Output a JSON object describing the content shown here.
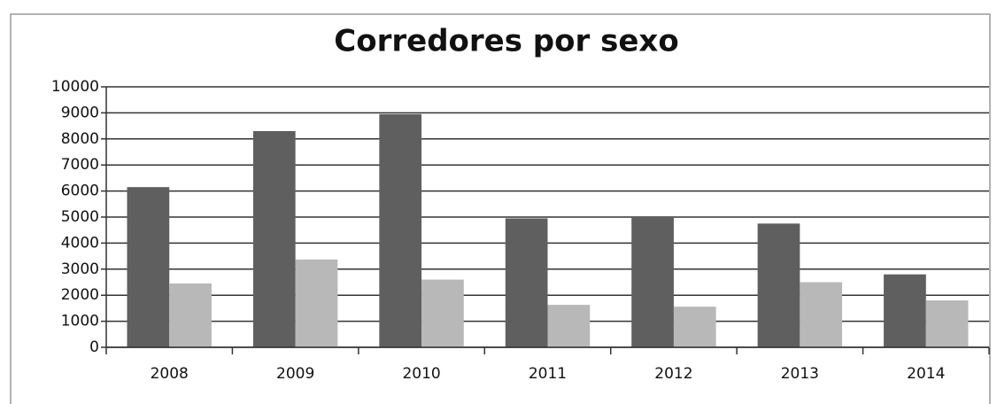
{
  "chart_data": {
    "type": "bar",
    "title": "Corredores por sexo",
    "categories": [
      "2008",
      "2009",
      "2010",
      "2011",
      "2012",
      "2013",
      "2014"
    ],
    "series": [
      {
        "color": "#5f5f5f",
        "values": [
          6150,
          8300,
          8950,
          4950,
          5000,
          4750,
          2800
        ]
      },
      {
        "color": "#b8b8b8",
        "values": [
          2450,
          3370,
          2600,
          1630,
          1560,
          2500,
          1800
        ]
      }
    ],
    "ylim": [
      0,
      10000
    ],
    "yticks": [
      0,
      1000,
      2000,
      3000,
      4000,
      5000,
      6000,
      7000,
      8000,
      9000,
      10000
    ],
    "grid": true
  }
}
